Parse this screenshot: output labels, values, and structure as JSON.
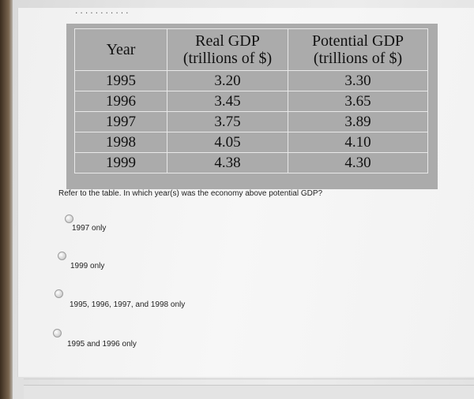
{
  "header": {
    "dashes": "..........."
  },
  "gdp_table": {
    "headers": [
      "Year",
      "Real GDP (trillions of $)",
      "Potential GDP (trillions of $)"
    ],
    "header_lines": {
      "year": "Year",
      "real_line1": "Real GDP",
      "real_line2": "(trillions of $)",
      "potential_line1": "Potential GDP",
      "potential_line2": "(trillions of $)"
    },
    "rows": [
      {
        "year": "1995",
        "real": "3.20",
        "potential": "3.30"
      },
      {
        "year": "1996",
        "real": "3.45",
        "potential": "3.65"
      },
      {
        "year": "1997",
        "real": "3.75",
        "potential": "3.89"
      },
      {
        "year": "1998",
        "real": "4.05",
        "potential": "4.10"
      },
      {
        "year": "1999",
        "real": "4.38",
        "potential": "4.30"
      }
    ]
  },
  "question": {
    "text": "Refer to the table. In which year(s) was the economy above potential GDP?"
  },
  "options": [
    {
      "label": "1997 only",
      "selected": false
    },
    {
      "label": "1999 only",
      "selected": false
    },
    {
      "label": "1995, 1996, 1997, and 1998 only",
      "selected": false
    },
    {
      "label": "1995 and 1996 only",
      "selected": false
    }
  ]
}
